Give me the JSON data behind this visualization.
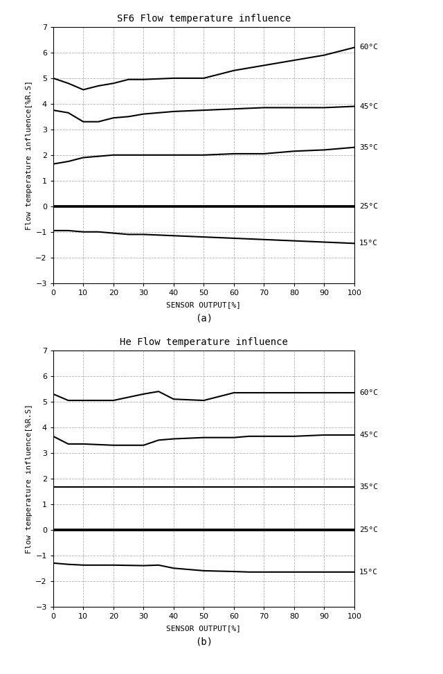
{
  "title_a": "SF6 Flow temperature influence",
  "title_b": "He Flow temperature influence",
  "xlabel": "SENSOR OUTPUT[%]",
  "ylabel": "Flow temperature influence[%R.S]",
  "label_a": "(a)",
  "label_b": "(b)",
  "xticks": [
    0,
    10,
    20,
    30,
    40,
    50,
    60,
    70,
    80,
    90,
    100
  ],
  "yticks": [
    -3,
    -2,
    -1,
    0,
    1,
    2,
    3,
    4,
    5,
    6,
    7
  ],
  "xlim": [
    0,
    100
  ],
  "ylim": [
    -3,
    7
  ],
  "temp_labels": [
    "60°C",
    "45°C",
    "35°C",
    "25°C",
    "15°C"
  ],
  "sf6": {
    "x": [
      0,
      5,
      10,
      15,
      20,
      25,
      30,
      40,
      50,
      60,
      70,
      80,
      90,
      100
    ],
    "60C": [
      5.0,
      4.8,
      4.55,
      4.7,
      4.8,
      4.95,
      4.95,
      5.0,
      5.0,
      5.3,
      5.5,
      5.7,
      5.9,
      6.2
    ],
    "45C": [
      3.75,
      3.65,
      3.3,
      3.3,
      3.45,
      3.5,
      3.6,
      3.7,
      3.75,
      3.8,
      3.85,
      3.85,
      3.85,
      3.9
    ],
    "35C": [
      1.65,
      1.75,
      1.9,
      1.95,
      2.0,
      2.0,
      2.0,
      2.0,
      2.0,
      2.05,
      2.05,
      2.15,
      2.2,
      2.3
    ],
    "25C": [
      0.0,
      0.0,
      0.0,
      0.0,
      0.0,
      0.0,
      0.0,
      0.0,
      0.0,
      0.0,
      0.0,
      0.0,
      0.0,
      0.0
    ],
    "15C": [
      -0.95,
      -0.95,
      -1.0,
      -1.0,
      -1.05,
      -1.1,
      -1.1,
      -1.15,
      -1.2,
      -1.25,
      -1.3,
      -1.35,
      -1.4,
      -1.45
    ]
  },
  "he": {
    "x": [
      0,
      5,
      10,
      20,
      30,
      35,
      40,
      50,
      60,
      65,
      70,
      80,
      90,
      100
    ],
    "60C": [
      5.3,
      5.05,
      5.05,
      5.05,
      5.3,
      5.4,
      5.1,
      5.05,
      5.35,
      5.35,
      5.35,
      5.35,
      5.35,
      5.35
    ],
    "45C": [
      3.65,
      3.35,
      3.35,
      3.3,
      3.3,
      3.5,
      3.55,
      3.6,
      3.6,
      3.65,
      3.65,
      3.65,
      3.7,
      3.7
    ],
    "35C": [
      1.68,
      1.68,
      1.68,
      1.68,
      1.68,
      1.68,
      1.68,
      1.68,
      1.68,
      1.68,
      1.68,
      1.68,
      1.68,
      1.68
    ],
    "25C": [
      0.0,
      0.0,
      0.0,
      0.0,
      0.0,
      0.0,
      0.0,
      0.0,
      0.0,
      0.0,
      0.0,
      0.0,
      0.0,
      0.0
    ],
    "15C": [
      -1.3,
      -1.35,
      -1.38,
      -1.38,
      -1.4,
      -1.38,
      -1.5,
      -1.6,
      -1.63,
      -1.65,
      -1.65,
      -1.65,
      -1.65,
      -1.65
    ]
  },
  "line_color": "#000000",
  "grid_color": "#b0b0b0",
  "bg_color": "#ffffff",
  "title_fontsize": 10,
  "axis_label_fontsize": 8,
  "tick_fontsize": 8,
  "annot_fontsize": 8,
  "sublabel_fontsize": 10
}
